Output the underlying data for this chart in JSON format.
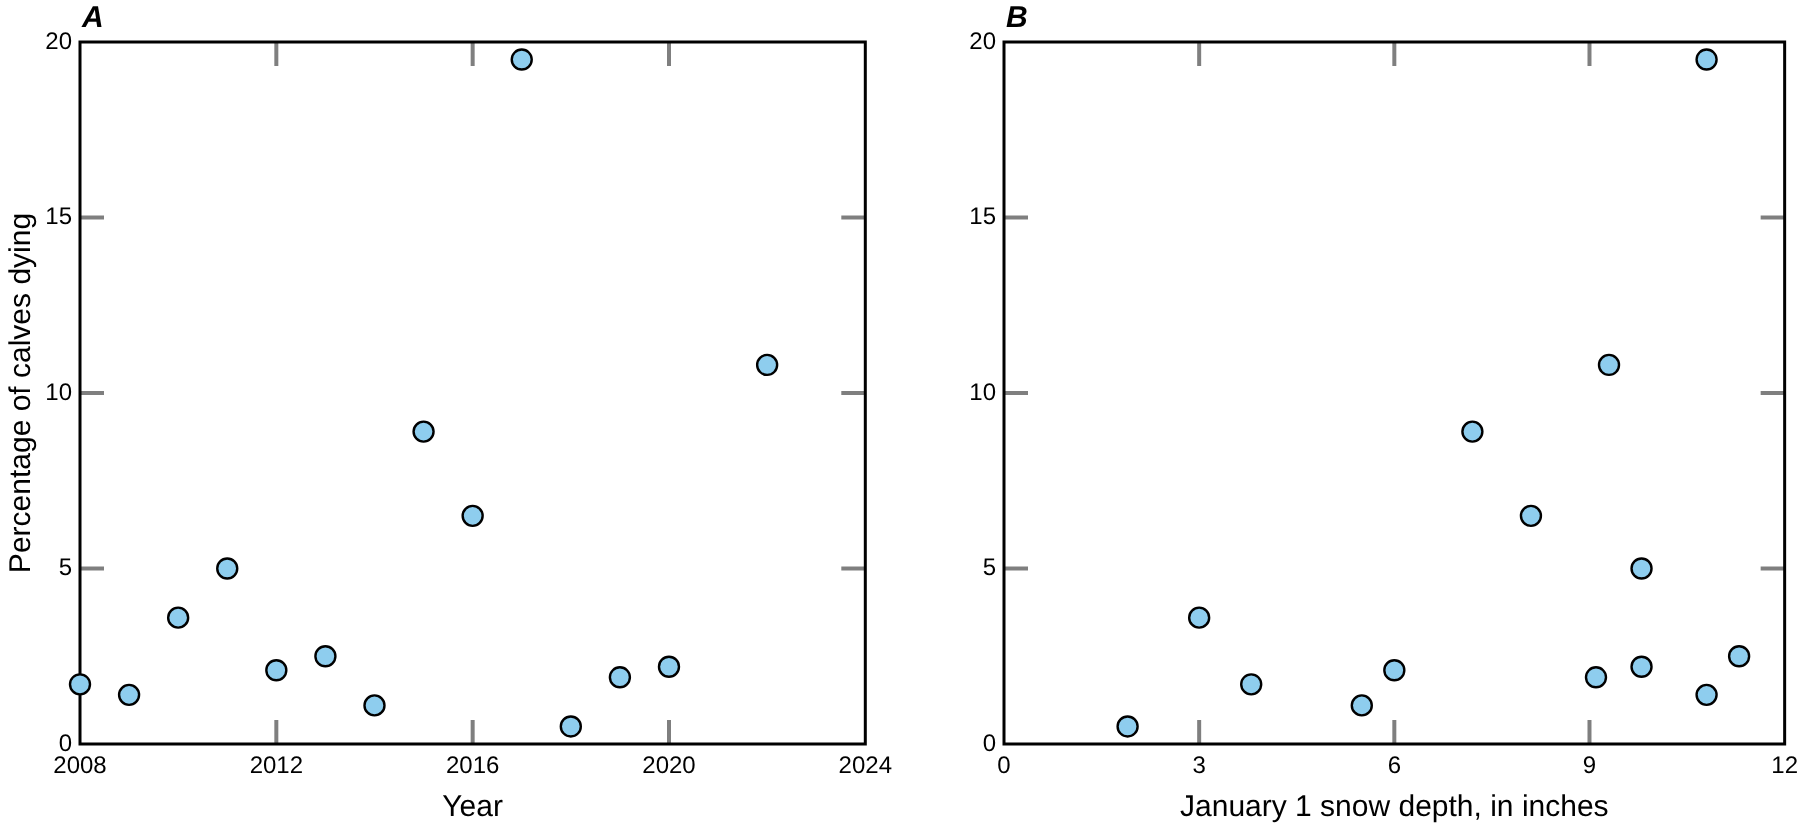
{
  "chart_data": [
    {
      "type": "scatter",
      "title": "A",
      "xlabel": "Year",
      "ylabel": "Percentage of calves dying",
      "x": [
        2008,
        2009,
        2010,
        2011,
        2012,
        2013,
        2014,
        2015,
        2016,
        2017,
        2018,
        2019,
        2020,
        2022
      ],
      "values": [
        1.7,
        1.4,
        3.6,
        5.0,
        2.1,
        2.5,
        1.1,
        8.9,
        6.5,
        19.5,
        0.5,
        1.9,
        2.2,
        10.8
      ],
      "color": "#8ecdee",
      "marker": "circle",
      "xlim": [
        2008,
        2024
      ],
      "xticks": [
        2008,
        2012,
        2016,
        2020,
        2024
      ],
      "ylim": [
        0,
        20
      ],
      "yticks": [
        0,
        5,
        10,
        15,
        20
      ]
    },
    {
      "type": "scatter",
      "title": "B",
      "xlabel": "January 1 snow depth, in inches",
      "x": [
        3.8,
        10.8,
        3.0,
        9.8,
        6.0,
        11.3,
        5.5,
        7.2,
        8.1,
        10.8,
        1.9,
        9.1,
        9.8,
        9.3
      ],
      "values": [
        1.7,
        1.4,
        3.6,
        5.0,
        2.1,
        2.5,
        1.1,
        8.9,
        6.5,
        19.5,
        0.5,
        1.9,
        2.2,
        10.8
      ],
      "color": "#8ecdee",
      "marker": "circle",
      "xlim": [
        0,
        12
      ],
      "xticks": [
        0,
        3,
        6,
        9,
        12
      ],
      "ylim": [
        0,
        20
      ],
      "yticks": [
        0,
        5,
        10,
        15,
        20
      ]
    }
  ]
}
